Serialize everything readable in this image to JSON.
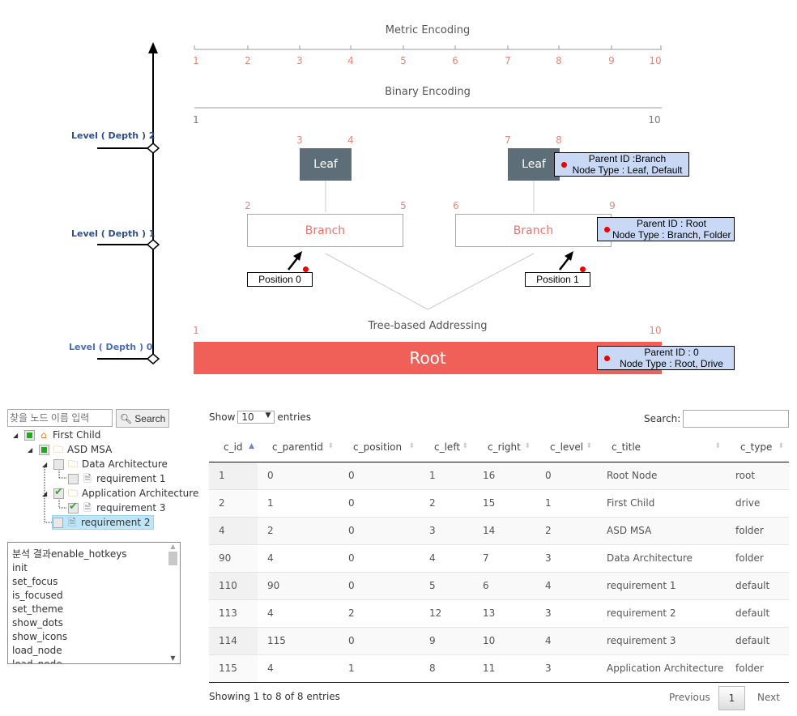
{
  "diagram": {
    "metric_title": "Metric Encoding",
    "metric_ticks": [
      "1",
      "2",
      "3",
      "4",
      "5",
      "6",
      "7",
      "8",
      "9",
      "10"
    ],
    "binary_title": "Binary Encoding",
    "binary_start": "1",
    "binary_end": "10",
    "levels": [
      "Level ( Depth ) 2",
      "Level ( Depth ) 1",
      "Level ( Depth ) 0"
    ],
    "leaf_label": "Leaf",
    "branch_label": "Branch",
    "root_label": "Root",
    "leaf_nums": [
      "3",
      "4",
      "7",
      "8"
    ],
    "branch_nums": [
      "2",
      "5",
      "6",
      "9"
    ],
    "position_0": "Position 0",
    "position_1": "Position 1",
    "tree_title": "Tree-based Addressing",
    "tree_start": "1",
    "tree_end": "10",
    "tip_leaf": [
      "Parent ID :Branch",
      "Node Type : Leaf, Default"
    ],
    "tip_branch": [
      "Parent ID : Root",
      "Node Type : Branch, Folder"
    ],
    "tip_root": [
      "Parent ID : 0",
      "Node Type : Root, Drive"
    ],
    "colors": {
      "root": "#f06058",
      "leaf": "#5e6e78",
      "tick": "#e8857c",
      "tooltip": "#c9d9f5"
    }
  },
  "tree": {
    "search_placeholder": "찾을 노드 이름 입력",
    "search_button": "Search",
    "nodes": [
      "First Child",
      "ASD MSA",
      "Data Architecture",
      "requirement 1",
      "Application Architecture",
      "requirement 3",
      "requirement 2"
    ]
  },
  "log": {
    "items": [
      "분석 결과enable_hotkeys",
      "init",
      "set_focus",
      "is_focused",
      "set_theme",
      "show_dots",
      "show_icons",
      "load_node",
      "load_node"
    ]
  },
  "table": {
    "show": "Show",
    "entries": "entries",
    "length": "10",
    "search_label": "Search:",
    "columns": [
      "c_id",
      "c_parentid",
      "c_position",
      "c_left",
      "c_right",
      "c_level",
      "c_title",
      "c_type"
    ],
    "rows": [
      [
        "1",
        "0",
        "0",
        "1",
        "16",
        "0",
        "Root Node",
        "root"
      ],
      [
        "2",
        "1",
        "0",
        "2",
        "15",
        "1",
        "First Child",
        "drive"
      ],
      [
        "4",
        "2",
        "0",
        "3",
        "14",
        "2",
        "ASD MSA",
        "folder"
      ],
      [
        "90",
        "4",
        "0",
        "4",
        "7",
        "3",
        "Data Architecture",
        "folder"
      ],
      [
        "110",
        "90",
        "0",
        "5",
        "6",
        "4",
        "requirement 1",
        "default"
      ],
      [
        "113",
        "4",
        "2",
        "12",
        "13",
        "3",
        "requirement 2",
        "default"
      ],
      [
        "114",
        "115",
        "0",
        "9",
        "10",
        "4",
        "requirement 3",
        "default"
      ],
      [
        "115",
        "4",
        "1",
        "8",
        "11",
        "3",
        "Application Architecture",
        "folder"
      ]
    ],
    "info": "Showing 1 to 8 of 8 entries",
    "previous": "Previous",
    "page": "1",
    "next": "Next"
  }
}
